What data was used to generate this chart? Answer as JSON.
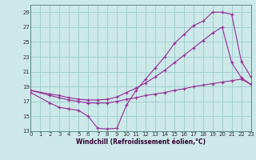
{
  "xlabel": "Windchill (Refroidissement éolien,°C)",
  "xlim": [
    0,
    23
  ],
  "ylim": [
    13,
    30
  ],
  "yticks": [
    13,
    15,
    17,
    19,
    21,
    23,
    25,
    27,
    29
  ],
  "xticks": [
    0,
    1,
    2,
    3,
    4,
    5,
    6,
    7,
    8,
    9,
    10,
    11,
    12,
    13,
    14,
    15,
    16,
    17,
    18,
    19,
    20,
    21,
    22,
    23
  ],
  "bg_color": "#cce8e8",
  "grid_color": "#99cccc",
  "line_color": "#993399",
  "lines": [
    {
      "x": [
        0,
        2,
        3,
        4,
        5,
        6,
        7,
        8,
        9,
        10,
        11,
        12,
        13,
        14,
        15,
        16,
        17,
        18,
        19,
        20,
        21,
        22,
        23
      ],
      "y": [
        18.2,
        16.8,
        16.2,
        16.0,
        15.8,
        15.0,
        13.4,
        13.3,
        13.4,
        16.5,
        18.5,
        20.0,
        21.5,
        23.0,
        24.8,
        26.0,
        27.2,
        27.8,
        29.0,
        29.0,
        28.7,
        22.4,
        20.3
      ]
    },
    {
      "x": [
        0,
        2,
        3,
        4,
        5,
        6,
        7,
        8,
        9,
        10,
        11,
        12,
        13,
        14,
        15,
        16,
        17,
        18,
        19,
        20,
        21,
        22,
        23
      ],
      "y": [
        18.5,
        17.8,
        17.5,
        17.2,
        17.0,
        16.8,
        16.8,
        16.8,
        17.0,
        17.3,
        17.5,
        17.8,
        18.0,
        18.2,
        18.5,
        18.7,
        19.0,
        19.2,
        19.4,
        19.6,
        19.8,
        20.0,
        19.3
      ]
    },
    {
      "x": [
        0,
        2,
        3,
        4,
        5,
        6,
        7,
        8,
        9,
        10,
        11,
        12,
        13,
        14,
        15,
        16,
        17,
        18,
        19,
        20,
        21,
        22,
        23
      ],
      "y": [
        18.5,
        18.0,
        17.8,
        17.5,
        17.3,
        17.2,
        17.2,
        17.3,
        17.6,
        18.2,
        18.8,
        19.5,
        20.3,
        21.2,
        22.2,
        23.2,
        24.2,
        25.2,
        26.2,
        27.0,
        22.2,
        20.2,
        19.3
      ]
    }
  ]
}
